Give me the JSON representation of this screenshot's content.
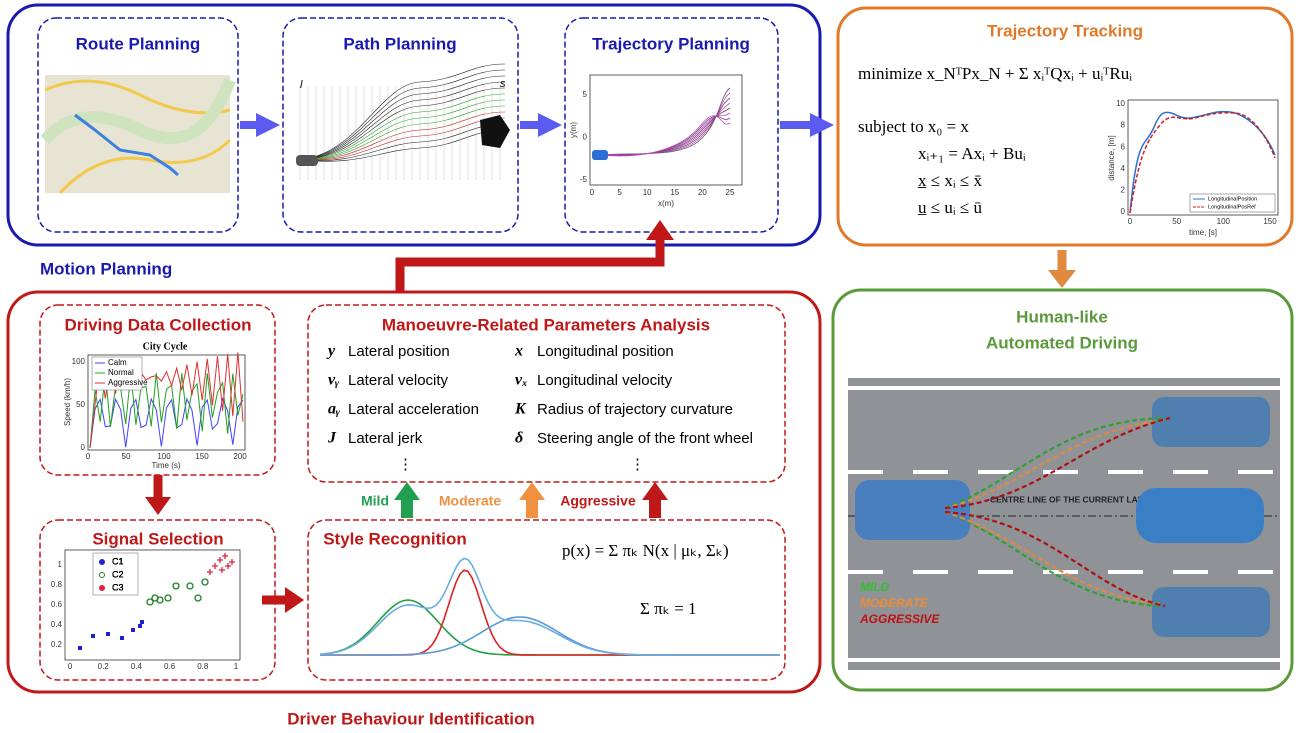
{
  "motion_planning": {
    "label": "Motion Planning",
    "route_planning": {
      "title": "Route Planning"
    },
    "path_planning": {
      "title": "Path Planning",
      "axis_l": "l",
      "axis_s": "s"
    },
    "trajectory_planning": {
      "title": "Trajectory Planning",
      "xlabel": "x(m)",
      "ylabel": "y(m)",
      "xticks": [
        "0",
        "5",
        "10",
        "15",
        "20",
        "25"
      ],
      "yticks": [
        "5",
        "0",
        "-5"
      ]
    }
  },
  "trajectory_tracking": {
    "title": "Trajectory Tracking",
    "formula": [
      "minimize x_NᵀPx_N + Σ xᵢᵀQxᵢ + uᵢᵀRuᵢ",
      "subject to x₀ = x",
      "xᵢ₊₁ = Axᵢ + Buᵢ",
      "x̲ ≤ xᵢ ≤ x̄",
      "u̲ ≤ uᵢ ≤ ū"
    ],
    "chart": {
      "xlabel": "time, [s]",
      "ylabel": "distance, [m]",
      "xticks": [
        "0",
        "50",
        "100",
        "150"
      ],
      "yticks": [
        "10",
        "8",
        "6",
        "4",
        "2",
        "0"
      ],
      "legend": [
        "LongitudinalPosition",
        "LongitudinalPosRef"
      ]
    }
  },
  "human_like": {
    "title": [
      "Human-like",
      "Automated Driving"
    ],
    "road_label": "CENTRE LINE OF THE CURRENT LANE",
    "styles": [
      "MILD",
      "MODERATE",
      "AGGRESSIVE"
    ]
  },
  "driver_behaviour": {
    "label": "Driver Behaviour Identification",
    "data_collection": {
      "title": "Driving Data Collection",
      "chart_title": "City Cycle",
      "legend": [
        "Calm",
        "Normal",
        "Aggressive"
      ],
      "xlabel": "Time (s)",
      "ylabel": "Speed (km/h)",
      "xticks": [
        "0",
        "50",
        "100",
        "150",
        "200"
      ],
      "yticks": [
        "100",
        "50",
        "0"
      ]
    },
    "parameters": {
      "title": "Manoeuvre-Related Parameters Analysis",
      "rows": [
        {
          "symbol": "y",
          "label": "Lateral position"
        },
        {
          "symbol": "vᵧ",
          "label": "Lateral velocity"
        },
        {
          "symbol": "aᵧ",
          "label": "Lateral acceleration"
        },
        {
          "symbol": "J",
          "label": "Lateral jerk"
        },
        {
          "symbol": "x",
          "label": "Longitudinal position"
        },
        {
          "symbol": "vₓ",
          "label": "Longitudinal velocity"
        },
        {
          "symbol": "K",
          "label": "Radius of trajectory curvature"
        },
        {
          "symbol": "δ",
          "label": "Steering angle of the front wheel"
        }
      ],
      "ellipsis": [
        "⋮",
        "⋮"
      ]
    },
    "styles": [
      "Mild",
      "Moderate",
      "Aggressive"
    ],
    "signal_selection": {
      "title": "Signal Selection",
      "legend": [
        "C1",
        "C2",
        "C3"
      ],
      "xticks": [
        "0",
        "0.2",
        "0.4",
        "0.6",
        "0.8",
        "1"
      ],
      "yticks": [
        "1",
        "0.8",
        "0.6",
        "0.4",
        "0.2"
      ]
    },
    "style_recognition": {
      "title": "Style Recognition",
      "formulas": [
        "p(x) = Σ πₖ N(x | μₖ, Σₖ)",
        "Σ πₖ = 1"
      ]
    }
  }
}
